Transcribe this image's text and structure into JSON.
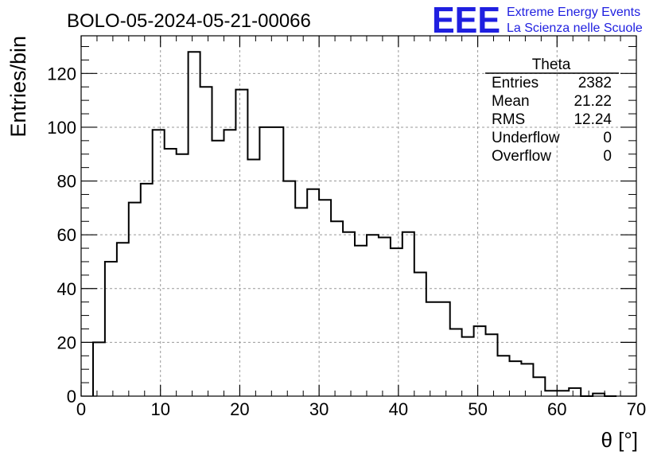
{
  "chart_data": {
    "type": "bar",
    "title": "BOLO-05-2024-05-21-00066",
    "xlabel": "θ [°]",
    "ylabel": "Entries/bin",
    "xlim": [
      0,
      70
    ],
    "ylim": [
      0,
      134
    ],
    "grid": true,
    "x_ticks": [
      0,
      10,
      20,
      30,
      40,
      50,
      60,
      70
    ],
    "y_ticks": [
      0,
      20,
      40,
      60,
      80,
      100,
      120
    ],
    "bin_width": 1.5,
    "bin_edges_start": 1.5,
    "values": [
      20,
      50,
      57,
      72,
      79,
      99,
      92,
      90,
      128,
      115,
      95,
      99,
      114,
      88,
      100,
      100,
      80,
      70,
      77,
      73,
      65,
      61,
      56,
      60,
      59,
      55,
      61,
      46,
      35,
      35,
      25,
      22,
      26,
      23,
      15,
      13,
      12,
      7,
      2,
      2,
      3,
      0,
      1,
      0
    ]
  },
  "logo": {
    "letters": "EEE",
    "line1": "Extreme Energy Events",
    "line2": "La Scienza nelle Scuole",
    "color": "#1f1fe0"
  },
  "stats_box": {
    "title": "Theta",
    "rows": [
      {
        "label": "Entries",
        "value": "2382"
      },
      {
        "label": "Mean",
        "value": "21.22"
      },
      {
        "label": "RMS",
        "value": "12.24"
      },
      {
        "label": "Underflow",
        "value": "0"
      },
      {
        "label": "Overflow",
        "value": "0"
      }
    ]
  }
}
